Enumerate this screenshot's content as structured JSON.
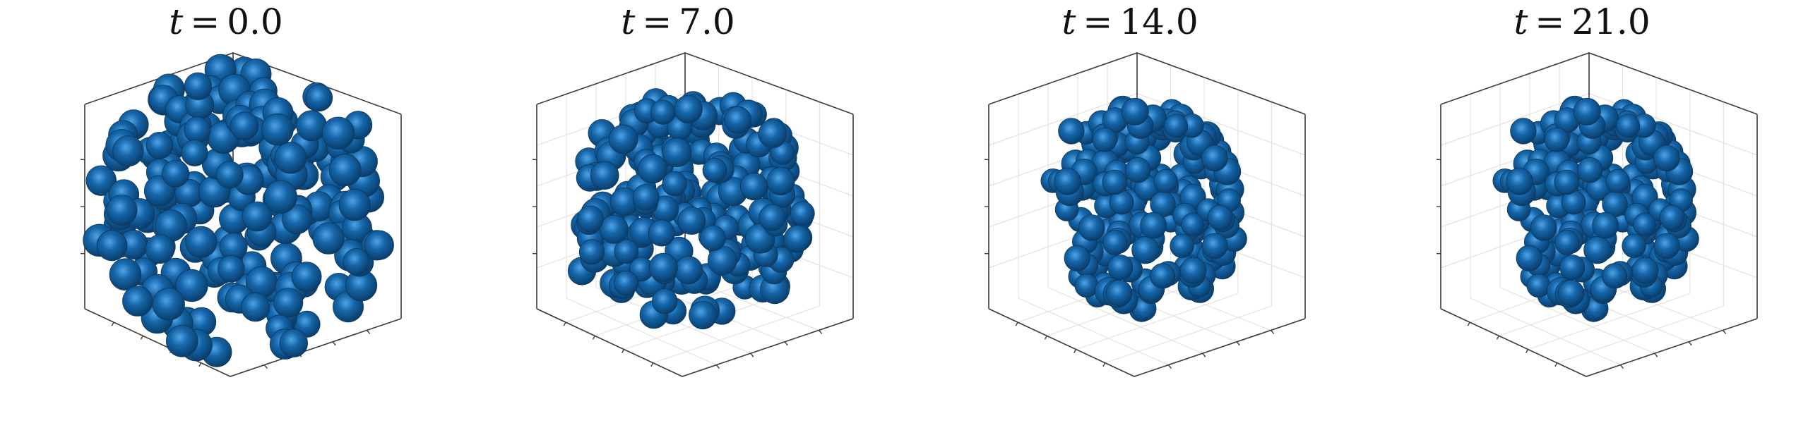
{
  "figure": {
    "ball_color": "#1565a8",
    "panels": [
      {
        "variable": "t",
        "time": "0.0",
        "cluster": "loose"
      },
      {
        "variable": "t",
        "time": "7.0",
        "cluster": "compacting"
      },
      {
        "variable": "t",
        "time": "14.0",
        "cluster": "compact"
      },
      {
        "variable": "t",
        "time": "21.0",
        "cluster": "compact"
      }
    ]
  }
}
